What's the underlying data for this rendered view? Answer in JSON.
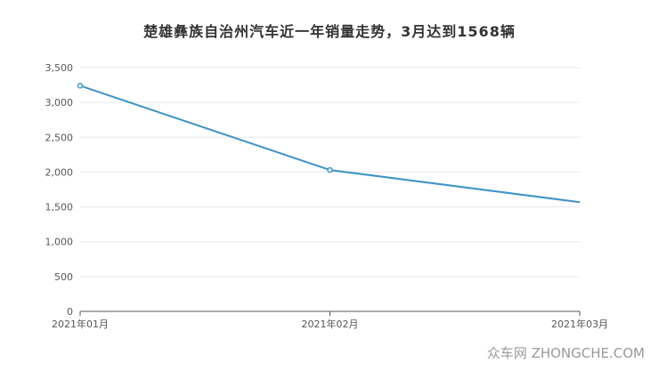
{
  "chart_data": {
    "type": "line",
    "title": "楚雄彝族自治州汽车近一年销量走势，3月达到1568辆",
    "categories": [
      "2021年01月",
      "2021年02月",
      "2021年03月"
    ],
    "series": [
      {
        "values": [
          3240,
          2030,
          1568
        ]
      }
    ],
    "ylim": [
      0,
      3500
    ],
    "y_ticks": [
      "0",
      "500",
      "1,000",
      "1,500",
      "2,000",
      "2,500",
      "3,000",
      "3,500"
    ],
    "y_tick_values": [
      0,
      500,
      1000,
      1500,
      2000,
      2500,
      3000,
      3500
    ],
    "grid": true,
    "line_color": "#3d94c8",
    "grid_color": "#e6e6e6"
  },
  "watermark": "众车网 ZHONGCHE.COM"
}
